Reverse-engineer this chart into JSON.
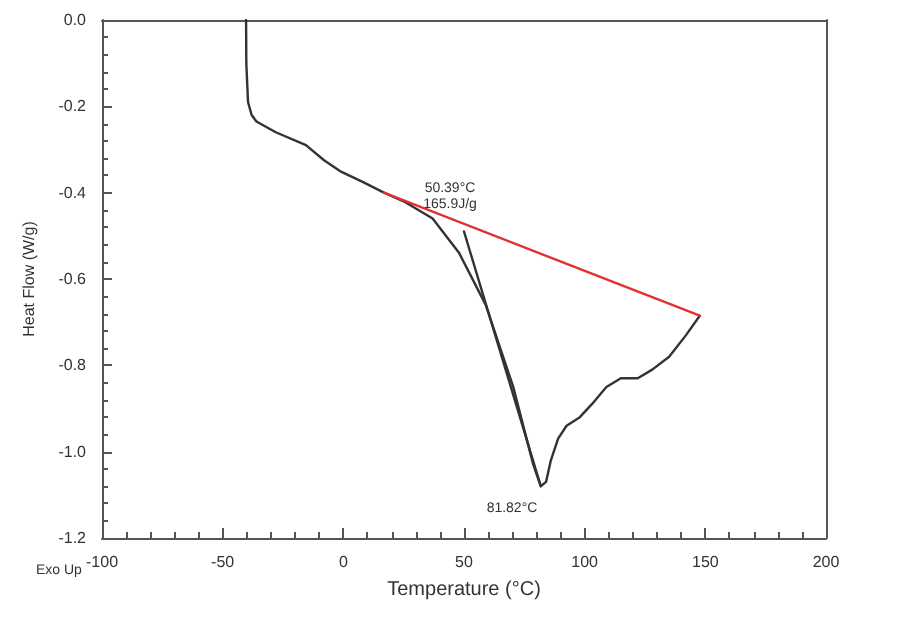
{
  "chart_data": {
    "type": "line",
    "xlabel": "Temperature (°C)",
    "ylabel": "Heat Flow (W/g)",
    "xlim": [
      -100,
      200
    ],
    "xticks": [
      -100,
      -50,
      0,
      50,
      100,
      150,
      200
    ],
    "ylim": [
      -1.2,
      0
    ],
    "yticks": [
      {
        "value": -1.2,
        "label": "-1.2"
      },
      {
        "value": -1,
        "label": "-1.0"
      },
      {
        "value": -0.8,
        "label": "-0.8"
      },
      {
        "value": -0.6,
        "label": "-0.6"
      },
      {
        "value": -0.4,
        "label": "-0.4"
      },
      {
        "value": -0.2,
        "label": "-0.2"
      },
      {
        "value": 0,
        "label": "0.0"
      }
    ],
    "grid": false,
    "series": [
      {
        "color": "#333333",
        "x": [
          -40.3,
          -40.2,
          -39.5,
          -38,
          -36,
          -28,
          -15.5,
          -8,
          -1.4,
          8,
          16.8,
          25,
          37,
          48,
          59,
          70.4,
          78.7,
          81.8,
          84,
          86,
          89,
          92.5,
          98,
          103,
          109,
          115,
          122,
          128,
          135,
          142,
          147.7
        ],
        "values": [
          0,
          -0.1,
          -0.19,
          -0.22,
          -0.235,
          -0.26,
          -0.29,
          -0.325,
          -0.35,
          -0.375,
          -0.4,
          -0.42,
          -0.46,
          -0.54,
          -0.66,
          -0.85,
          -1.03,
          -1.08,
          -1.07,
          -1.02,
          -0.97,
          -0.94,
          -0.92,
          -0.89,
          -0.85,
          -0.83,
          -0.83,
          -0.81,
          -0.78,
          -0.73,
          -0.685
        ]
      },
      {
        "color": "#333333",
        "x": [
          50,
          81.8
        ],
        "values": [
          -0.49,
          -1.08
        ]
      },
      {
        "color": "#e03030",
        "x": [
          16.8,
          147.7
        ],
        "values": [
          -0.4,
          -0.685
        ]
      }
    ],
    "annotations": [
      "50.39°C",
      "165.9J/g",
      "81.82°C",
      "Exo Up"
    ]
  }
}
